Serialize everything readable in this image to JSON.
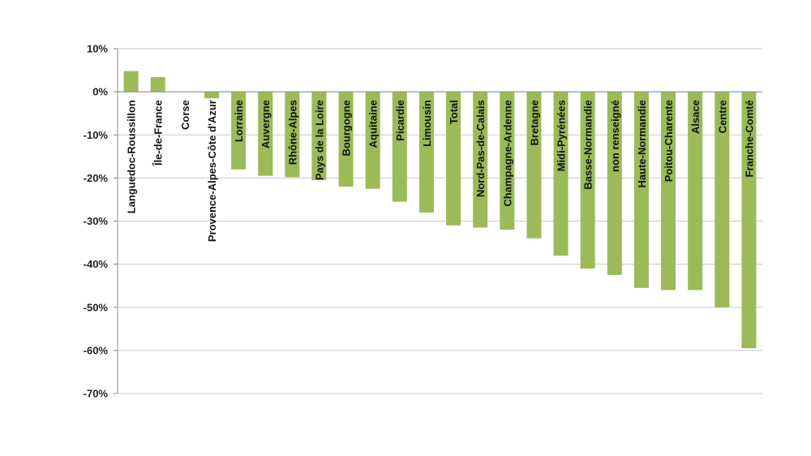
{
  "chart_data": {
    "type": "bar",
    "title": "",
    "xlabel": "",
    "ylabel": "",
    "ylim": [
      -70,
      10
    ],
    "yticks": [
      10,
      0,
      -10,
      -20,
      -30,
      -40,
      -50,
      -60,
      -70
    ],
    "ytick_labels": [
      "10%",
      "0%",
      "-10%",
      "-20%",
      "-30%",
      "-40%",
      "-50%",
      "-60%",
      "-70%"
    ],
    "grid": true,
    "legend": "none",
    "bar_color": "#9bbb59",
    "categories": [
      "Languedoc-Roussillon",
      "Île-de-France",
      "Corse",
      "Provence-Alpes-Côte d'Azur",
      "Lorraine",
      "Auvergne",
      "Rhône-Alpes",
      "Pays de la Loire",
      "Bourgogne",
      "Aquitaine",
      "Picardie",
      "Limousin",
      "Total",
      "Nord-Pas-de-Calais",
      "Champagne-Ardenne",
      "Bretagne",
      "Midi-Pyrénées",
      "Basse-Normandie",
      "non renseigné",
      "Haute-Normandie",
      "Poitou-Charente",
      "Alsace",
      "Centre",
      "Franche-Comté"
    ],
    "values": [
      4.8,
      3.4,
      0,
      -1.5,
      -18,
      -19.5,
      -19.8,
      -20.5,
      -22,
      -22.5,
      -25.5,
      -28,
      -31,
      -31.5,
      -32,
      -34,
      -38,
      -41,
      -42.5,
      -45.5,
      -46,
      -46,
      -50,
      -59.5
    ]
  }
}
